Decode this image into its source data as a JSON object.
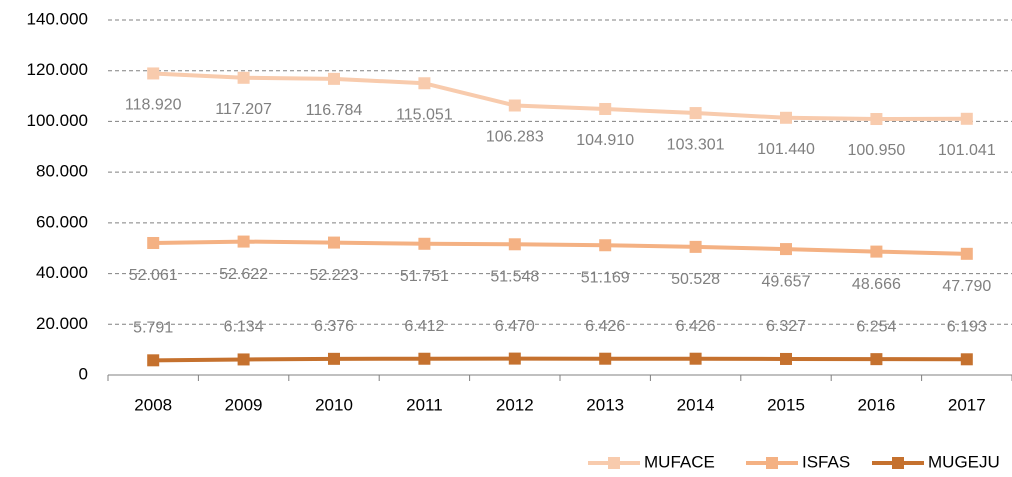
{
  "chart_data": {
    "type": "line",
    "categories": [
      "2008",
      "2009",
      "2010",
      "2011",
      "2012",
      "2013",
      "2014",
      "2015",
      "2016",
      "2017"
    ],
    "series": [
      {
        "name": "MUFACE",
        "color": "#f8cbad",
        "values": [
          118920,
          117207,
          116784,
          115051,
          106283,
          104910,
          103301,
          101440,
          100950,
          101041
        ],
        "value_labels": [
          "118.920",
          "117.207",
          "116.784",
          "115.051",
          "106.283",
          "104.910",
          "103.301",
          "101.440",
          "100.950",
          "101.041"
        ]
      },
      {
        "name": "ISFAS",
        "color": "#f4b183",
        "values": [
          52061,
          52622,
          52223,
          51751,
          51548,
          51169,
          50528,
          49657,
          48666,
          47790
        ],
        "value_labels": [
          "52.061",
          "52.622",
          "52.223",
          "51.751",
          "51.548",
          "51.169",
          "50.528",
          "49.657",
          "48.666",
          "47.790"
        ]
      },
      {
        "name": "MUGEJU",
        "color": "#c5712e",
        "values": [
          5791,
          6134,
          6376,
          6412,
          6470,
          6426,
          6426,
          6327,
          6254,
          6193
        ],
        "value_labels": [
          "5.791",
          "6.134",
          "6.376",
          "6.412",
          "6.470",
          "6.426",
          "6.426",
          "6.327",
          "6.254",
          "6.193"
        ]
      }
    ],
    "ylim": [
      0,
      140000
    ],
    "yticks": [
      0,
      {
        "value": 20000,
        "label": "20.000"
      },
      {
        "value": 40000,
        "label": "40.000"
      },
      {
        "value": 60000,
        "label": "60.000"
      },
      {
        "value": 80000,
        "label": "80.000"
      },
      {
        "value": 100000,
        "label": "100.000"
      },
      {
        "value": 120000,
        "label": "120.000"
      },
      {
        "value": 140000,
        "label": "140.000"
      }
    ],
    "grid": true,
    "legend": "bottom-right"
  }
}
